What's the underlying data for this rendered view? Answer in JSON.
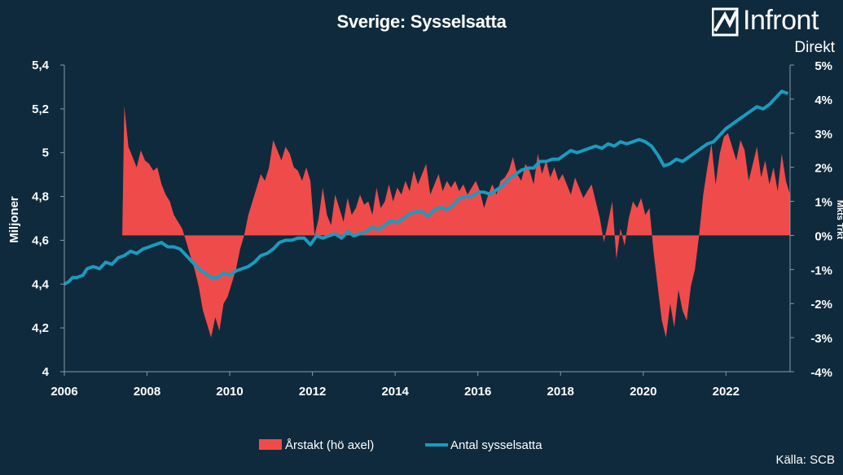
{
  "header": {
    "title": "Sverige: Sysselsatta",
    "logo_text": "Infront",
    "logo_sub": "Direkt",
    "logo_icon": "infront-logo-icon"
  },
  "source": "Källa:  SCB",
  "colors": {
    "background": "#0f2a3c",
    "line": "#1a9bbf",
    "area": "#f04b4b",
    "axis": "#8a9aa6"
  },
  "chart_data": {
    "type": "line+area",
    "x_range": [
      2006,
      2023.55
    ],
    "x_ticks": [
      "2006",
      "2008",
      "2010",
      "2012",
      "2014",
      "2016",
      "2018",
      "2020",
      "2022"
    ],
    "y_left": {
      "label": "Miljoner",
      "range": [
        4,
        5.4
      ],
      "ticks": [
        "4",
        "4,2",
        "4,4",
        "4,6",
        "4,8",
        "5",
        "5,2",
        "5,4"
      ]
    },
    "y_right": {
      "label": "Mkts Trkt",
      "range": [
        -4,
        5
      ],
      "ticks": [
        "-4%",
        "-3%",
        "-2%",
        "-1%",
        "0%",
        "1%",
        "2%",
        "3%",
        "4%",
        "5%"
      ]
    },
    "legend": [
      {
        "name": "Årstakt (hö axel)",
        "kind": "area"
      },
      {
        "name": "Antal sysselsatta",
        "kind": "line"
      }
    ],
    "series_line": {
      "name": "Antal sysselsatta",
      "axis": "left",
      "points": [
        [
          2006.0,
          4.4
        ],
        [
          2006.1,
          4.41
        ],
        [
          2006.2,
          4.43
        ],
        [
          2006.3,
          4.43
        ],
        [
          2006.45,
          4.44
        ],
        [
          2006.55,
          4.47
        ],
        [
          2006.7,
          4.48
        ],
        [
          2006.85,
          4.47
        ],
        [
          2007.0,
          4.5
        ],
        [
          2007.15,
          4.49
        ],
        [
          2007.3,
          4.52
        ],
        [
          2007.45,
          4.53
        ],
        [
          2007.6,
          4.55
        ],
        [
          2007.75,
          4.54
        ],
        [
          2007.9,
          4.56
        ],
        [
          2008.05,
          4.57
        ],
        [
          2008.2,
          4.58
        ],
        [
          2008.35,
          4.59
        ],
        [
          2008.5,
          4.57
        ],
        [
          2008.65,
          4.57
        ],
        [
          2008.8,
          4.56
        ],
        [
          2008.95,
          4.53
        ],
        [
          2009.1,
          4.5
        ],
        [
          2009.25,
          4.47
        ],
        [
          2009.4,
          4.45
        ],
        [
          2009.55,
          4.43
        ],
        [
          2009.7,
          4.43
        ],
        [
          2009.85,
          4.45
        ],
        [
          2010.0,
          4.44
        ],
        [
          2010.15,
          4.46
        ],
        [
          2010.3,
          4.47
        ],
        [
          2010.45,
          4.48
        ],
        [
          2010.6,
          4.5
        ],
        [
          2010.75,
          4.53
        ],
        [
          2010.9,
          4.54
        ],
        [
          2011.05,
          4.56
        ],
        [
          2011.2,
          4.59
        ],
        [
          2011.35,
          4.6
        ],
        [
          2011.5,
          4.6
        ],
        [
          2011.65,
          4.61
        ],
        [
          2011.8,
          4.61
        ],
        [
          2011.95,
          4.58
        ],
        [
          2012.1,
          4.62
        ],
        [
          2012.25,
          4.61
        ],
        [
          2012.4,
          4.62
        ],
        [
          2012.55,
          4.63
        ],
        [
          2012.7,
          4.61
        ],
        [
          2012.85,
          4.64
        ],
        [
          2013.0,
          4.62
        ],
        [
          2013.15,
          4.63
        ],
        [
          2013.3,
          4.64
        ],
        [
          2013.45,
          4.66
        ],
        [
          2013.6,
          4.65
        ],
        [
          2013.75,
          4.67
        ],
        [
          2013.9,
          4.69
        ],
        [
          2014.05,
          4.68
        ],
        [
          2014.2,
          4.7
        ],
        [
          2014.35,
          4.72
        ],
        [
          2014.5,
          4.73
        ],
        [
          2014.65,
          4.73
        ],
        [
          2014.8,
          4.71
        ],
        [
          2014.95,
          4.74
        ],
        [
          2015.1,
          4.75
        ],
        [
          2015.25,
          4.74
        ],
        [
          2015.4,
          4.76
        ],
        [
          2015.55,
          4.79
        ],
        [
          2015.7,
          4.8
        ],
        [
          2015.85,
          4.8
        ],
        [
          2016.0,
          4.82
        ],
        [
          2016.15,
          4.82
        ],
        [
          2016.3,
          4.81
        ],
        [
          2016.45,
          4.83
        ],
        [
          2016.6,
          4.85
        ],
        [
          2016.75,
          4.88
        ],
        [
          2016.9,
          4.9
        ],
        [
          2017.05,
          4.92
        ],
        [
          2017.2,
          4.93
        ],
        [
          2017.35,
          4.93
        ],
        [
          2017.5,
          4.96
        ],
        [
          2017.65,
          4.96
        ],
        [
          2017.8,
          4.97
        ],
        [
          2017.95,
          4.97
        ],
        [
          2018.1,
          4.99
        ],
        [
          2018.25,
          5.01
        ],
        [
          2018.4,
          5.0
        ],
        [
          2018.55,
          5.01
        ],
        [
          2018.7,
          5.02
        ],
        [
          2018.85,
          5.03
        ],
        [
          2019.0,
          5.02
        ],
        [
          2019.15,
          5.04
        ],
        [
          2019.3,
          5.03
        ],
        [
          2019.45,
          5.05
        ],
        [
          2019.6,
          5.04
        ],
        [
          2019.75,
          5.05
        ],
        [
          2019.9,
          5.06
        ],
        [
          2020.05,
          5.05
        ],
        [
          2020.2,
          5.03
        ],
        [
          2020.35,
          4.99
        ],
        [
          2020.5,
          4.94
        ],
        [
          2020.65,
          4.95
        ],
        [
          2020.8,
          4.97
        ],
        [
          2020.95,
          4.96
        ],
        [
          2021.1,
          4.98
        ],
        [
          2021.25,
          5.0
        ],
        [
          2021.4,
          5.02
        ],
        [
          2021.55,
          5.04
        ],
        [
          2021.7,
          5.05
        ],
        [
          2021.85,
          5.08
        ],
        [
          2022.0,
          5.11
        ],
        [
          2022.15,
          5.13
        ],
        [
          2022.3,
          5.15
        ],
        [
          2022.45,
          5.17
        ],
        [
          2022.6,
          5.19
        ],
        [
          2022.75,
          5.21
        ],
        [
          2022.9,
          5.2
        ],
        [
          2023.05,
          5.22
        ],
        [
          2023.2,
          5.25
        ],
        [
          2023.35,
          5.28
        ],
        [
          2023.5,
          5.27
        ]
      ]
    },
    "series_area": {
      "name": "Årstakt (hö axel)",
      "axis": "right",
      "points": [
        [
          2007.4,
          0.0
        ],
        [
          2007.45,
          3.8
        ],
        [
          2007.55,
          2.6
        ],
        [
          2007.65,
          2.3
        ],
        [
          2007.75,
          2.0
        ],
        [
          2007.85,
          2.5
        ],
        [
          2007.95,
          2.2
        ],
        [
          2008.05,
          2.1
        ],
        [
          2008.15,
          1.9
        ],
        [
          2008.25,
          2.0
        ],
        [
          2008.35,
          1.5
        ],
        [
          2008.45,
          1.2
        ],
        [
          2008.55,
          1.0
        ],
        [
          2008.65,
          0.6
        ],
        [
          2008.75,
          0.4
        ],
        [
          2008.85,
          0.2
        ],
        [
          2008.95,
          -0.2
        ],
        [
          2009.05,
          -0.6
        ],
        [
          2009.15,
          -1.0
        ],
        [
          2009.25,
          -1.5
        ],
        [
          2009.35,
          -2.2
        ],
        [
          2009.45,
          -2.6
        ],
        [
          2009.55,
          -3.0
        ],
        [
          2009.65,
          -2.4
        ],
        [
          2009.75,
          -2.8
        ],
        [
          2009.85,
          -2.0
        ],
        [
          2009.95,
          -1.8
        ],
        [
          2010.05,
          -1.4
        ],
        [
          2010.15,
          -1.0
        ],
        [
          2010.25,
          -0.4
        ],
        [
          2010.35,
          0.0
        ],
        [
          2010.45,
          0.6
        ],
        [
          2010.55,
          1.0
        ],
        [
          2010.65,
          1.4
        ],
        [
          2010.75,
          1.8
        ],
        [
          2010.85,
          1.6
        ],
        [
          2010.95,
          2.0
        ],
        [
          2011.05,
          2.8
        ],
        [
          2011.15,
          2.5
        ],
        [
          2011.25,
          2.2
        ],
        [
          2011.35,
          2.6
        ],
        [
          2011.45,
          2.4
        ],
        [
          2011.55,
          2.0
        ],
        [
          2011.65,
          1.9
        ],
        [
          2011.75,
          1.6
        ],
        [
          2011.85,
          2.0
        ],
        [
          2011.95,
          1.6
        ],
        [
          2012.05,
          0.0
        ],
        [
          2012.15,
          0.5
        ],
        [
          2012.25,
          1.4
        ],
        [
          2012.35,
          0.6
        ],
        [
          2012.45,
          0.3
        ],
        [
          2012.55,
          1.2
        ],
        [
          2012.65,
          0.8
        ],
        [
          2012.75,
          0.4
        ],
        [
          2012.85,
          1.1
        ],
        [
          2012.95,
          0.6
        ],
        [
          2013.05,
          0.8
        ],
        [
          2013.15,
          1.2
        ],
        [
          2013.25,
          0.9
        ],
        [
          2013.35,
          1.0
        ],
        [
          2013.45,
          0.6
        ],
        [
          2013.55,
          1.4
        ],
        [
          2013.65,
          0.8
        ],
        [
          2013.75,
          1.0
        ],
        [
          2013.85,
          1.5
        ],
        [
          2013.95,
          1.0
        ],
        [
          2014.05,
          1.4
        ],
        [
          2014.15,
          1.2
        ],
        [
          2014.25,
          1.6
        ],
        [
          2014.35,
          1.3
        ],
        [
          2014.45,
          1.9
        ],
        [
          2014.55,
          1.5
        ],
        [
          2014.65,
          1.8
        ],
        [
          2014.75,
          2.1
        ],
        [
          2014.85,
          1.2
        ],
        [
          2014.95,
          1.5
        ],
        [
          2015.05,
          1.8
        ],
        [
          2015.15,
          1.3
        ],
        [
          2015.25,
          1.6
        ],
        [
          2015.35,
          1.4
        ],
        [
          2015.45,
          1.6
        ],
        [
          2015.55,
          1.3
        ],
        [
          2015.65,
          1.5
        ],
        [
          2015.75,
          1.2
        ],
        [
          2015.85,
          1.4
        ],
        [
          2015.95,
          1.6
        ],
        [
          2016.05,
          1.3
        ],
        [
          2016.15,
          0.8
        ],
        [
          2016.25,
          1.2
        ],
        [
          2016.35,
          1.5
        ],
        [
          2016.45,
          1.2
        ],
        [
          2016.55,
          1.6
        ],
        [
          2016.65,
          1.7
        ],
        [
          2016.75,
          1.9
        ],
        [
          2016.85,
          2.3
        ],
        [
          2016.95,
          1.8
        ],
        [
          2017.05,
          1.6
        ],
        [
          2017.15,
          2.1
        ],
        [
          2017.25,
          1.9
        ],
        [
          2017.35,
          1.5
        ],
        [
          2017.45,
          2.4
        ],
        [
          2017.55,
          1.8
        ],
        [
          2017.65,
          2.2
        ],
        [
          2017.75,
          1.7
        ],
        [
          2017.85,
          2.0
        ],
        [
          2017.95,
          1.6
        ],
        [
          2018.05,
          1.8
        ],
        [
          2018.15,
          1.5
        ],
        [
          2018.25,
          1.2
        ],
        [
          2018.35,
          1.7
        ],
        [
          2018.45,
          1.4
        ],
        [
          2018.55,
          1.1
        ],
        [
          2018.65,
          1.3
        ],
        [
          2018.75,
          1.5
        ],
        [
          2018.85,
          1.0
        ],
        [
          2018.95,
          0.5
        ],
        [
          2019.05,
          -0.2
        ],
        [
          2019.15,
          0.4
        ],
        [
          2019.25,
          1.0
        ],
        [
          2019.35,
          -0.7
        ],
        [
          2019.45,
          0.2
        ],
        [
          2019.55,
          -0.3
        ],
        [
          2019.65,
          0.5
        ],
        [
          2019.75,
          1.0
        ],
        [
          2019.85,
          0.8
        ],
        [
          2019.95,
          1.1
        ],
        [
          2020.05,
          0.6
        ],
        [
          2020.15,
          0.8
        ],
        [
          2020.25,
          -0.5
        ],
        [
          2020.35,
          -1.5
        ],
        [
          2020.45,
          -2.5
        ],
        [
          2020.55,
          -3.0
        ],
        [
          2020.65,
          -2.0
        ],
        [
          2020.75,
          -2.7
        ],
        [
          2020.85,
          -1.6
        ],
        [
          2020.95,
          -2.2
        ],
        [
          2021.05,
          -2.5
        ],
        [
          2021.15,
          -1.5
        ],
        [
          2021.25,
          -1.0
        ],
        [
          2021.35,
          0.0
        ],
        [
          2021.45,
          1.2
        ],
        [
          2021.55,
          2.0
        ],
        [
          2021.65,
          2.7
        ],
        [
          2021.75,
          1.5
        ],
        [
          2021.85,
          2.4
        ],
        [
          2021.95,
          2.9
        ],
        [
          2022.05,
          3.0
        ],
        [
          2022.15,
          2.6
        ],
        [
          2022.25,
          2.2
        ],
        [
          2022.35,
          2.8
        ],
        [
          2022.45,
          2.5
        ],
        [
          2022.55,
          1.6
        ],
        [
          2022.65,
          2.1
        ],
        [
          2022.75,
          2.6
        ],
        [
          2022.85,
          1.7
        ],
        [
          2022.95,
          2.2
        ],
        [
          2023.05,
          1.5
        ],
        [
          2023.15,
          2.0
        ],
        [
          2023.25,
          1.3
        ],
        [
          2023.35,
          2.4
        ],
        [
          2023.45,
          1.6
        ],
        [
          2023.55,
          1.2
        ]
      ]
    }
  }
}
